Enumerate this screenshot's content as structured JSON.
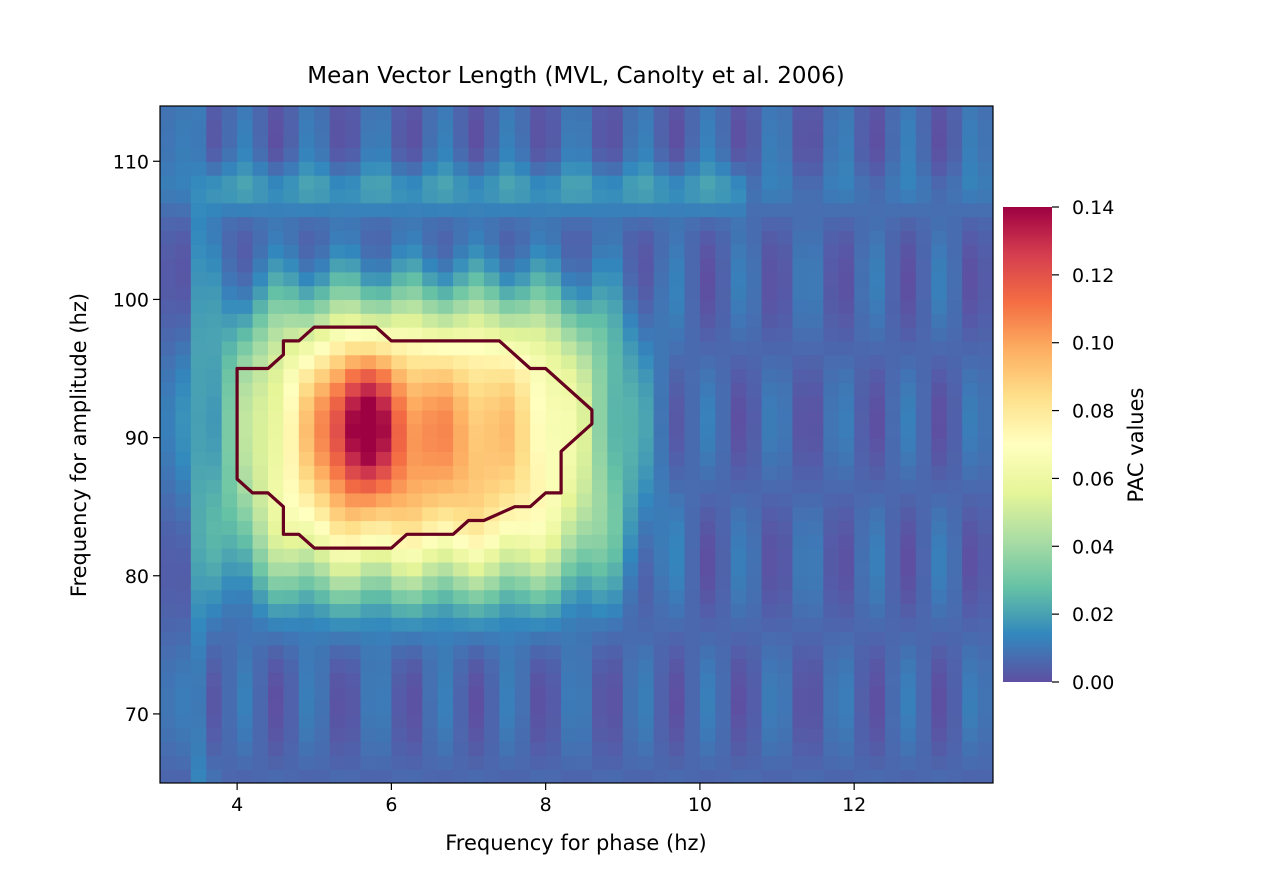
{
  "chart_data": {
    "type": "heatmap",
    "title": "Mean Vector Length (MVL, Canolty et al. 2006)",
    "xlabel": "Frequency for phase (hz)",
    "ylabel": "Frequency for amplitude (hz)",
    "xlim": [
      3.0,
      13.8
    ],
    "ylim": [
      65.0,
      114.0
    ],
    "x_ticks": [
      4,
      6,
      8,
      10,
      12
    ],
    "y_ticks": [
      70,
      80,
      90,
      100,
      110
    ],
    "colormap": "Spectral_r",
    "colorbar": {
      "label": "PAC values",
      "range": [
        0.0,
        0.14
      ],
      "ticks": [
        "0.00",
        "0.02",
        "0.04",
        "0.06",
        "0.08",
        "0.10",
        "0.12",
        "0.14"
      ]
    },
    "peak": {
      "phase_hz": 5.6,
      "amplitude_hz": 91,
      "value": 0.14
    },
    "significance_contour": {
      "color": "#67001f",
      "points": [
        [
          4.0,
          95
        ],
        [
          4.4,
          95
        ],
        [
          4.6,
          96
        ],
        [
          4.6,
          97
        ],
        [
          4.8,
          97
        ],
        [
          5.0,
          98
        ],
        [
          5.8,
          98
        ],
        [
          6.0,
          97
        ],
        [
          7.4,
          97
        ],
        [
          7.8,
          95
        ],
        [
          8.0,
          95
        ],
        [
          8.6,
          92
        ],
        [
          8.6,
          91
        ],
        [
          8.2,
          89
        ],
        [
          8.2,
          86
        ],
        [
          8.0,
          86
        ],
        [
          7.8,
          85
        ],
        [
          7.6,
          85
        ],
        [
          7.2,
          84
        ],
        [
          7.0,
          84
        ],
        [
          6.8,
          83
        ],
        [
          6.2,
          83
        ],
        [
          6.0,
          82
        ],
        [
          5.0,
          82
        ],
        [
          4.8,
          83
        ],
        [
          4.6,
          83
        ],
        [
          4.6,
          85
        ],
        [
          4.4,
          86
        ],
        [
          4.2,
          86
        ],
        [
          4.0,
          87
        ]
      ]
    }
  }
}
